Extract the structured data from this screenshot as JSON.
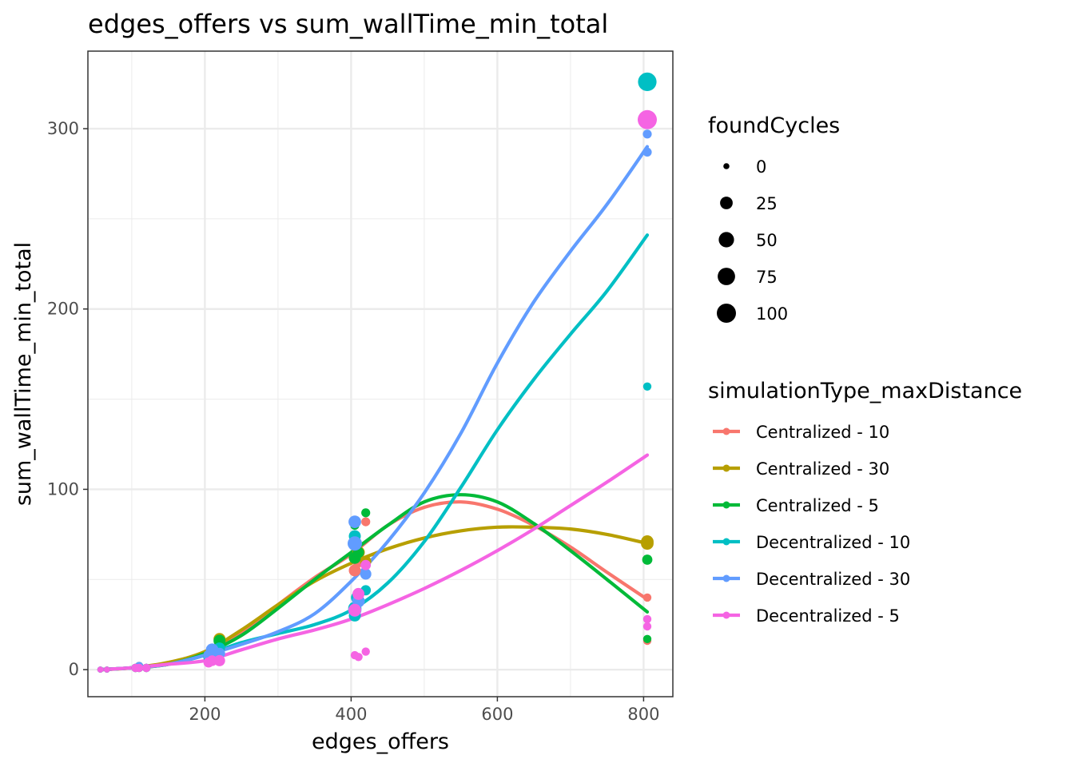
{
  "chart_data": {
    "type": "scatter",
    "title": "edges_offers  vs  sum_wallTime_min_total",
    "xlabel": "edges_offers",
    "ylabel": "sum_wallTime_min_total",
    "xlim": [
      40,
      840
    ],
    "ylim": [
      -15,
      343
    ],
    "x_ticks": [
      200,
      400,
      600,
      800
    ],
    "x_tick_labels": [
      "200",
      "400",
      "600",
      "800"
    ],
    "y_ticks": [
      0,
      100,
      200,
      300
    ],
    "y_tick_labels": [
      "0",
      "100",
      "200",
      "300"
    ],
    "grid": true,
    "size_legend": {
      "title": "foundCycles",
      "entries": [
        {
          "label": "0",
          "value": 0
        },
        {
          "label": "25",
          "value": 25
        },
        {
          "label": "50",
          "value": 50
        },
        {
          "label": "75",
          "value": 75
        },
        {
          "label": "100",
          "value": 100
        }
      ]
    },
    "color_legend": {
      "title": "simulationType_maxDistance",
      "placement": "right"
    },
    "series": [
      {
        "name": "Centralized - 10",
        "color": "#F8766D",
        "points": [
          [
            57,
            0,
            0
          ],
          [
            66,
            0,
            0
          ],
          [
            105,
            1,
            3
          ],
          [
            110,
            1,
            3
          ],
          [
            120,
            1,
            3
          ],
          [
            205,
            7,
            12
          ],
          [
            210,
            9,
            15
          ],
          [
            220,
            12,
            15
          ],
          [
            405,
            55,
            20
          ],
          [
            410,
            60,
            20
          ],
          [
            420,
            82,
            5
          ],
          [
            805,
            16,
            3
          ],
          [
            805,
            40,
            3
          ]
        ],
        "trend": [
          [
            57,
            0
          ],
          [
            100,
            1
          ],
          [
            150,
            3
          ],
          [
            200,
            9
          ],
          [
            250,
            20
          ],
          [
            300,
            36
          ],
          [
            350,
            51
          ],
          [
            400,
            64
          ],
          [
            450,
            80
          ],
          [
            500,
            90
          ],
          [
            550,
            93
          ],
          [
            600,
            89
          ],
          [
            650,
            80
          ],
          [
            700,
            68
          ],
          [
            750,
            54
          ],
          [
            805,
            39
          ]
        ]
      },
      {
        "name": "Centralized - 30",
        "color": "#B79F00",
        "points": [
          [
            57,
            0,
            0
          ],
          [
            66,
            0,
            0
          ],
          [
            105,
            1,
            3
          ],
          [
            110,
            2,
            3
          ],
          [
            120,
            1,
            3
          ],
          [
            205,
            8,
            12
          ],
          [
            210,
            10,
            15
          ],
          [
            220,
            17,
            20
          ],
          [
            405,
            62,
            20
          ],
          [
            410,
            65,
            25
          ],
          [
            420,
            60,
            15
          ],
          [
            805,
            70,
            25
          ],
          [
            805,
            71,
            25
          ]
        ],
        "trend": [
          [
            57,
            0
          ],
          [
            100,
            1
          ],
          [
            150,
            4
          ],
          [
            200,
            10
          ],
          [
            250,
            22
          ],
          [
            300,
            36
          ],
          [
            350,
            49
          ],
          [
            400,
            59
          ],
          [
            450,
            67
          ],
          [
            500,
            73
          ],
          [
            550,
            77
          ],
          [
            600,
            79
          ],
          [
            650,
            79
          ],
          [
            700,
            78
          ],
          [
            750,
            75
          ],
          [
            805,
            70
          ]
        ]
      },
      {
        "name": "Centralized - 5",
        "color": "#00BA38",
        "points": [
          [
            57,
            0,
            0
          ],
          [
            66,
            0,
            0
          ],
          [
            105,
            1,
            3
          ],
          [
            110,
            1,
            3
          ],
          [
            120,
            1,
            3
          ],
          [
            205,
            8,
            12
          ],
          [
            210,
            10,
            15
          ],
          [
            220,
            16,
            20
          ],
          [
            405,
            62,
            20
          ],
          [
            405,
            80,
            5
          ],
          [
            410,
            65,
            15
          ],
          [
            420,
            87,
            5
          ],
          [
            805,
            61,
            10
          ],
          [
            805,
            17,
            3
          ]
        ],
        "trend": [
          [
            57,
            0
          ],
          [
            100,
            1
          ],
          [
            150,
            3
          ],
          [
            200,
            9
          ],
          [
            250,
            19
          ],
          [
            300,
            34
          ],
          [
            350,
            50
          ],
          [
            400,
            65
          ],
          [
            450,
            80
          ],
          [
            500,
            93
          ],
          [
            550,
            97
          ],
          [
            600,
            93
          ],
          [
            650,
            81
          ],
          [
            700,
            66
          ],
          [
            750,
            50
          ],
          [
            805,
            32
          ]
        ]
      },
      {
        "name": "Decentralized - 10",
        "color": "#00BFC4",
        "points": [
          [
            57,
            0,
            0
          ],
          [
            66,
            0,
            0
          ],
          [
            105,
            1,
            3
          ],
          [
            110,
            1,
            3
          ],
          [
            120,
            1,
            3
          ],
          [
            205,
            7,
            12
          ],
          [
            210,
            10,
            15
          ],
          [
            220,
            12,
            15
          ],
          [
            405,
            30,
            20
          ],
          [
            405,
            34,
            30
          ],
          [
            405,
            74,
            20
          ],
          [
            408,
            40,
            20
          ],
          [
            420,
            44,
            10
          ],
          [
            805,
            157,
            3
          ],
          [
            805,
            326,
            90
          ]
        ],
        "trend": [
          [
            57,
            0
          ],
          [
            100,
            1
          ],
          [
            150,
            3
          ],
          [
            200,
            8
          ],
          [
            250,
            15
          ],
          [
            300,
            20
          ],
          [
            350,
            25
          ],
          [
            400,
            33
          ],
          [
            450,
            48
          ],
          [
            500,
            71
          ],
          [
            550,
            101
          ],
          [
            600,
            133
          ],
          [
            650,
            161
          ],
          [
            700,
            186
          ],
          [
            750,
            210
          ],
          [
            805,
            241
          ]
        ]
      },
      {
        "name": "Decentralized - 30",
        "color": "#619CFF",
        "points": [
          [
            57,
            0,
            0
          ],
          [
            66,
            0,
            0
          ],
          [
            105,
            1,
            3
          ],
          [
            110,
            2,
            3
          ],
          [
            120,
            1,
            3
          ],
          [
            205,
            8,
            12
          ],
          [
            210,
            11,
            25
          ],
          [
            220,
            9,
            15
          ],
          [
            405,
            33,
            30
          ],
          [
            405,
            70,
            40
          ],
          [
            405,
            82,
            25
          ],
          [
            410,
            38,
            25
          ],
          [
            420,
            53,
            15
          ],
          [
            805,
            287,
            5
          ],
          [
            805,
            297,
            5
          ]
        ],
        "trend": [
          [
            57,
            0
          ],
          [
            100,
            1
          ],
          [
            150,
            3
          ],
          [
            200,
            8
          ],
          [
            250,
            14
          ],
          [
            300,
            21
          ],
          [
            350,
            31
          ],
          [
            400,
            49
          ],
          [
            450,
            71
          ],
          [
            500,
            98
          ],
          [
            550,
            131
          ],
          [
            600,
            170
          ],
          [
            650,
            204
          ],
          [
            700,
            232
          ],
          [
            750,
            258
          ],
          [
            805,
            290
          ]
        ]
      },
      {
        "name": "Decentralized - 5",
        "color": "#F564E3",
        "points": [
          [
            57,
            0,
            0
          ],
          [
            66,
            0,
            0
          ],
          [
            105,
            1,
            3
          ],
          [
            110,
            1,
            3
          ],
          [
            120,
            1,
            3
          ],
          [
            205,
            4,
            10
          ],
          [
            210,
            5,
            12
          ],
          [
            220,
            5,
            15
          ],
          [
            405,
            8,
            3
          ],
          [
            410,
            7,
            3
          ],
          [
            405,
            33,
            25
          ],
          [
            410,
            42,
            20
          ],
          [
            420,
            58,
            10
          ],
          [
            420,
            10,
            3
          ],
          [
            805,
            24,
            3
          ],
          [
            805,
            28,
            3
          ],
          [
            805,
            305,
            100
          ]
        ],
        "trend": [
          [
            57,
            0
          ],
          [
            100,
            1
          ],
          [
            150,
            3
          ],
          [
            200,
            5
          ],
          [
            250,
            11
          ],
          [
            300,
            17
          ],
          [
            350,
            22
          ],
          [
            400,
            28
          ],
          [
            450,
            36
          ],
          [
            500,
            45
          ],
          [
            550,
            55
          ],
          [
            600,
            66
          ],
          [
            650,
            78
          ],
          [
            700,
            91
          ],
          [
            750,
            104
          ],
          [
            805,
            119
          ]
        ]
      }
    ]
  }
}
